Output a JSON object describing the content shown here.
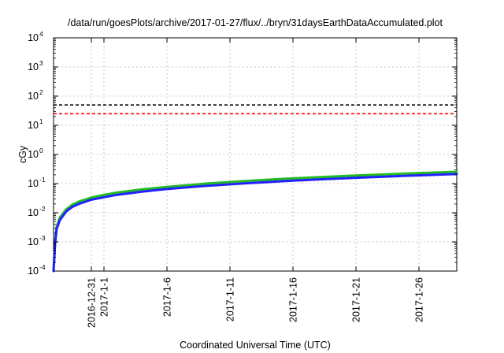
{
  "chart_data": {
    "type": "line",
    "title": "/data/run/goesPlots/archive/2017-01-27/flux/../bryn/31daysEarthDataAccumulated.plot",
    "xlabel": "Coordinated Universal Time (UTC)",
    "ylabel": "cGy",
    "y_scale": "log",
    "ylim": [
      0.0001,
      10000
    ],
    "y_ticks": [
      {
        "value": 0.0001,
        "base": "10",
        "exp": "-4"
      },
      {
        "value": 0.001,
        "base": "10",
        "exp": "-3"
      },
      {
        "value": 0.01,
        "base": "10",
        "exp": "-2"
      },
      {
        "value": 0.1,
        "base": "10",
        "exp": "-1"
      },
      {
        "value": 1,
        "base": "10",
        "exp": "0"
      },
      {
        "value": 10,
        "base": "10",
        "exp": "1"
      },
      {
        "value": 100,
        "base": "10",
        "exp": "2"
      },
      {
        "value": 1000,
        "base": "10",
        "exp": "3"
      },
      {
        "value": 10000,
        "base": "10",
        "exp": "4"
      }
    ],
    "xlim": [
      "2016-12-28T00:00",
      "2017-01-29T00:00"
    ],
    "x_ticks": [
      "2016-12-31",
      "2017-1-1",
      "2017-1-6",
      "2017-1-11",
      "2017-1-16",
      "2017-1-21",
      "2017-1-26"
    ],
    "x_tick_dates": [
      "2016-12-31",
      "2017-01-01",
      "2017-01-06",
      "2017-01-11",
      "2017-01-16",
      "2017-01-21",
      "2017-01-26"
    ],
    "grid": true,
    "thresholds": [
      {
        "value": 50,
        "color": "#000000",
        "style": "dashed"
      },
      {
        "value": 25,
        "color": "#ff0000",
        "style": "dashed"
      }
    ],
    "series": [
      {
        "color": "#22bb22",
        "x": [
          "2016-12-28T00:00",
          "2016-12-28T03:00",
          "2016-12-28T06:00",
          "2016-12-28T12:00",
          "2016-12-29T00:00",
          "2016-12-29T12:00",
          "2016-12-30T00:00",
          "2016-12-31T00:00",
          "2017-01-01T00:00",
          "2017-01-02T00:00",
          "2017-01-04T00:00",
          "2017-01-06T00:00",
          "2017-01-09T00:00",
          "2017-01-12T00:00",
          "2017-01-15T00:00",
          "2017-01-18T00:00",
          "2017-01-21T00:00",
          "2017-01-24T00:00",
          "2017-01-27T00:00",
          "2017-01-29T00:00"
        ],
        "values": [
          0.00011,
          0.0011,
          0.0034,
          0.0068,
          0.013,
          0.019,
          0.024,
          0.033,
          0.041,
          0.049,
          0.063,
          0.077,
          0.099,
          0.121,
          0.144,
          0.166,
          0.189,
          0.213,
          0.238,
          0.255
        ]
      },
      {
        "color": "#2222ff",
        "x": [
          "2016-12-28T00:00",
          "2016-12-28T03:00",
          "2016-12-28T06:00",
          "2016-12-28T12:00",
          "2016-12-29T00:00",
          "2016-12-29T12:00",
          "2016-12-30T00:00",
          "2016-12-31T00:00",
          "2017-01-01T00:00",
          "2017-01-02T00:00",
          "2017-01-04T00:00",
          "2017-01-06T00:00",
          "2017-01-09T00:00",
          "2017-01-12T00:00",
          "2017-01-15T00:00",
          "2017-01-18T00:00",
          "2017-01-21T00:00",
          "2017-01-24T00:00",
          "2017-01-27T00:00",
          "2017-01-29T00:00"
        ],
        "values": [
          0.0001,
          0.0009,
          0.0028,
          0.0056,
          0.011,
          0.016,
          0.02,
          0.028,
          0.034,
          0.041,
          0.053,
          0.065,
          0.083,
          0.101,
          0.12,
          0.139,
          0.158,
          0.178,
          0.199,
          0.213
        ]
      }
    ]
  }
}
